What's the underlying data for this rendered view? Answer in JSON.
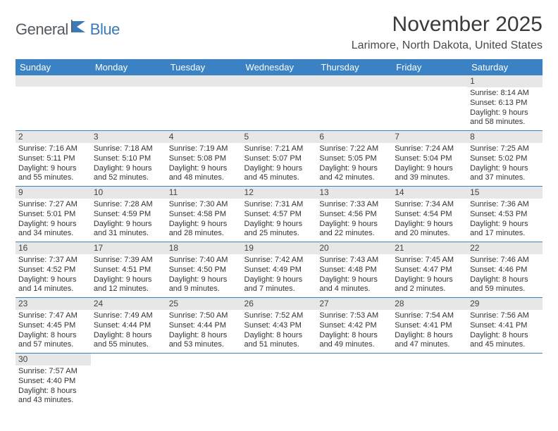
{
  "logo": {
    "part1": "General",
    "part2": "Blue"
  },
  "title": "November 2025",
  "location": "Larimore, North Dakota, United States",
  "colors": {
    "header_bg": "#3a82c4",
    "header_text": "#ffffff",
    "daynum_bg": "#e7e7e7",
    "text": "#333333",
    "logo_gray": "#555a5e",
    "logo_blue": "#3a7ab8"
  },
  "weekdays": [
    "Sunday",
    "Monday",
    "Tuesday",
    "Wednesday",
    "Thursday",
    "Friday",
    "Saturday"
  ],
  "weeks": [
    [
      null,
      null,
      null,
      null,
      null,
      null,
      {
        "n": "1",
        "sr": "Sunrise: 8:14 AM",
        "ss": "Sunset: 6:13 PM",
        "d1": "Daylight: 9 hours",
        "d2": "and 58 minutes."
      }
    ],
    [
      {
        "n": "2",
        "sr": "Sunrise: 7:16 AM",
        "ss": "Sunset: 5:11 PM",
        "d1": "Daylight: 9 hours",
        "d2": "and 55 minutes."
      },
      {
        "n": "3",
        "sr": "Sunrise: 7:18 AM",
        "ss": "Sunset: 5:10 PM",
        "d1": "Daylight: 9 hours",
        "d2": "and 52 minutes."
      },
      {
        "n": "4",
        "sr": "Sunrise: 7:19 AM",
        "ss": "Sunset: 5:08 PM",
        "d1": "Daylight: 9 hours",
        "d2": "and 48 minutes."
      },
      {
        "n": "5",
        "sr": "Sunrise: 7:21 AM",
        "ss": "Sunset: 5:07 PM",
        "d1": "Daylight: 9 hours",
        "d2": "and 45 minutes."
      },
      {
        "n": "6",
        "sr": "Sunrise: 7:22 AM",
        "ss": "Sunset: 5:05 PM",
        "d1": "Daylight: 9 hours",
        "d2": "and 42 minutes."
      },
      {
        "n": "7",
        "sr": "Sunrise: 7:24 AM",
        "ss": "Sunset: 5:04 PM",
        "d1": "Daylight: 9 hours",
        "d2": "and 39 minutes."
      },
      {
        "n": "8",
        "sr": "Sunrise: 7:25 AM",
        "ss": "Sunset: 5:02 PM",
        "d1": "Daylight: 9 hours",
        "d2": "and 37 minutes."
      }
    ],
    [
      {
        "n": "9",
        "sr": "Sunrise: 7:27 AM",
        "ss": "Sunset: 5:01 PM",
        "d1": "Daylight: 9 hours",
        "d2": "and 34 minutes."
      },
      {
        "n": "10",
        "sr": "Sunrise: 7:28 AM",
        "ss": "Sunset: 4:59 PM",
        "d1": "Daylight: 9 hours",
        "d2": "and 31 minutes."
      },
      {
        "n": "11",
        "sr": "Sunrise: 7:30 AM",
        "ss": "Sunset: 4:58 PM",
        "d1": "Daylight: 9 hours",
        "d2": "and 28 minutes."
      },
      {
        "n": "12",
        "sr": "Sunrise: 7:31 AM",
        "ss": "Sunset: 4:57 PM",
        "d1": "Daylight: 9 hours",
        "d2": "and 25 minutes."
      },
      {
        "n": "13",
        "sr": "Sunrise: 7:33 AM",
        "ss": "Sunset: 4:56 PM",
        "d1": "Daylight: 9 hours",
        "d2": "and 22 minutes."
      },
      {
        "n": "14",
        "sr": "Sunrise: 7:34 AM",
        "ss": "Sunset: 4:54 PM",
        "d1": "Daylight: 9 hours",
        "d2": "and 20 minutes."
      },
      {
        "n": "15",
        "sr": "Sunrise: 7:36 AM",
        "ss": "Sunset: 4:53 PM",
        "d1": "Daylight: 9 hours",
        "d2": "and 17 minutes."
      }
    ],
    [
      {
        "n": "16",
        "sr": "Sunrise: 7:37 AM",
        "ss": "Sunset: 4:52 PM",
        "d1": "Daylight: 9 hours",
        "d2": "and 14 minutes."
      },
      {
        "n": "17",
        "sr": "Sunrise: 7:39 AM",
        "ss": "Sunset: 4:51 PM",
        "d1": "Daylight: 9 hours",
        "d2": "and 12 minutes."
      },
      {
        "n": "18",
        "sr": "Sunrise: 7:40 AM",
        "ss": "Sunset: 4:50 PM",
        "d1": "Daylight: 9 hours",
        "d2": "and 9 minutes."
      },
      {
        "n": "19",
        "sr": "Sunrise: 7:42 AM",
        "ss": "Sunset: 4:49 PM",
        "d1": "Daylight: 9 hours",
        "d2": "and 7 minutes."
      },
      {
        "n": "20",
        "sr": "Sunrise: 7:43 AM",
        "ss": "Sunset: 4:48 PM",
        "d1": "Daylight: 9 hours",
        "d2": "and 4 minutes."
      },
      {
        "n": "21",
        "sr": "Sunrise: 7:45 AM",
        "ss": "Sunset: 4:47 PM",
        "d1": "Daylight: 9 hours",
        "d2": "and 2 minutes."
      },
      {
        "n": "22",
        "sr": "Sunrise: 7:46 AM",
        "ss": "Sunset: 4:46 PM",
        "d1": "Daylight: 8 hours",
        "d2": "and 59 minutes."
      }
    ],
    [
      {
        "n": "23",
        "sr": "Sunrise: 7:47 AM",
        "ss": "Sunset: 4:45 PM",
        "d1": "Daylight: 8 hours",
        "d2": "and 57 minutes."
      },
      {
        "n": "24",
        "sr": "Sunrise: 7:49 AM",
        "ss": "Sunset: 4:44 PM",
        "d1": "Daylight: 8 hours",
        "d2": "and 55 minutes."
      },
      {
        "n": "25",
        "sr": "Sunrise: 7:50 AM",
        "ss": "Sunset: 4:44 PM",
        "d1": "Daylight: 8 hours",
        "d2": "and 53 minutes."
      },
      {
        "n": "26",
        "sr": "Sunrise: 7:52 AM",
        "ss": "Sunset: 4:43 PM",
        "d1": "Daylight: 8 hours",
        "d2": "and 51 minutes."
      },
      {
        "n": "27",
        "sr": "Sunrise: 7:53 AM",
        "ss": "Sunset: 4:42 PM",
        "d1": "Daylight: 8 hours",
        "d2": "and 49 minutes."
      },
      {
        "n": "28",
        "sr": "Sunrise: 7:54 AM",
        "ss": "Sunset: 4:41 PM",
        "d1": "Daylight: 8 hours",
        "d2": "and 47 minutes."
      },
      {
        "n": "29",
        "sr": "Sunrise: 7:56 AM",
        "ss": "Sunset: 4:41 PM",
        "d1": "Daylight: 8 hours",
        "d2": "and 45 minutes."
      }
    ],
    [
      {
        "n": "30",
        "sr": "Sunrise: 7:57 AM",
        "ss": "Sunset: 4:40 PM",
        "d1": "Daylight: 8 hours",
        "d2": "and 43 minutes."
      },
      null,
      null,
      null,
      null,
      null,
      null
    ]
  ]
}
